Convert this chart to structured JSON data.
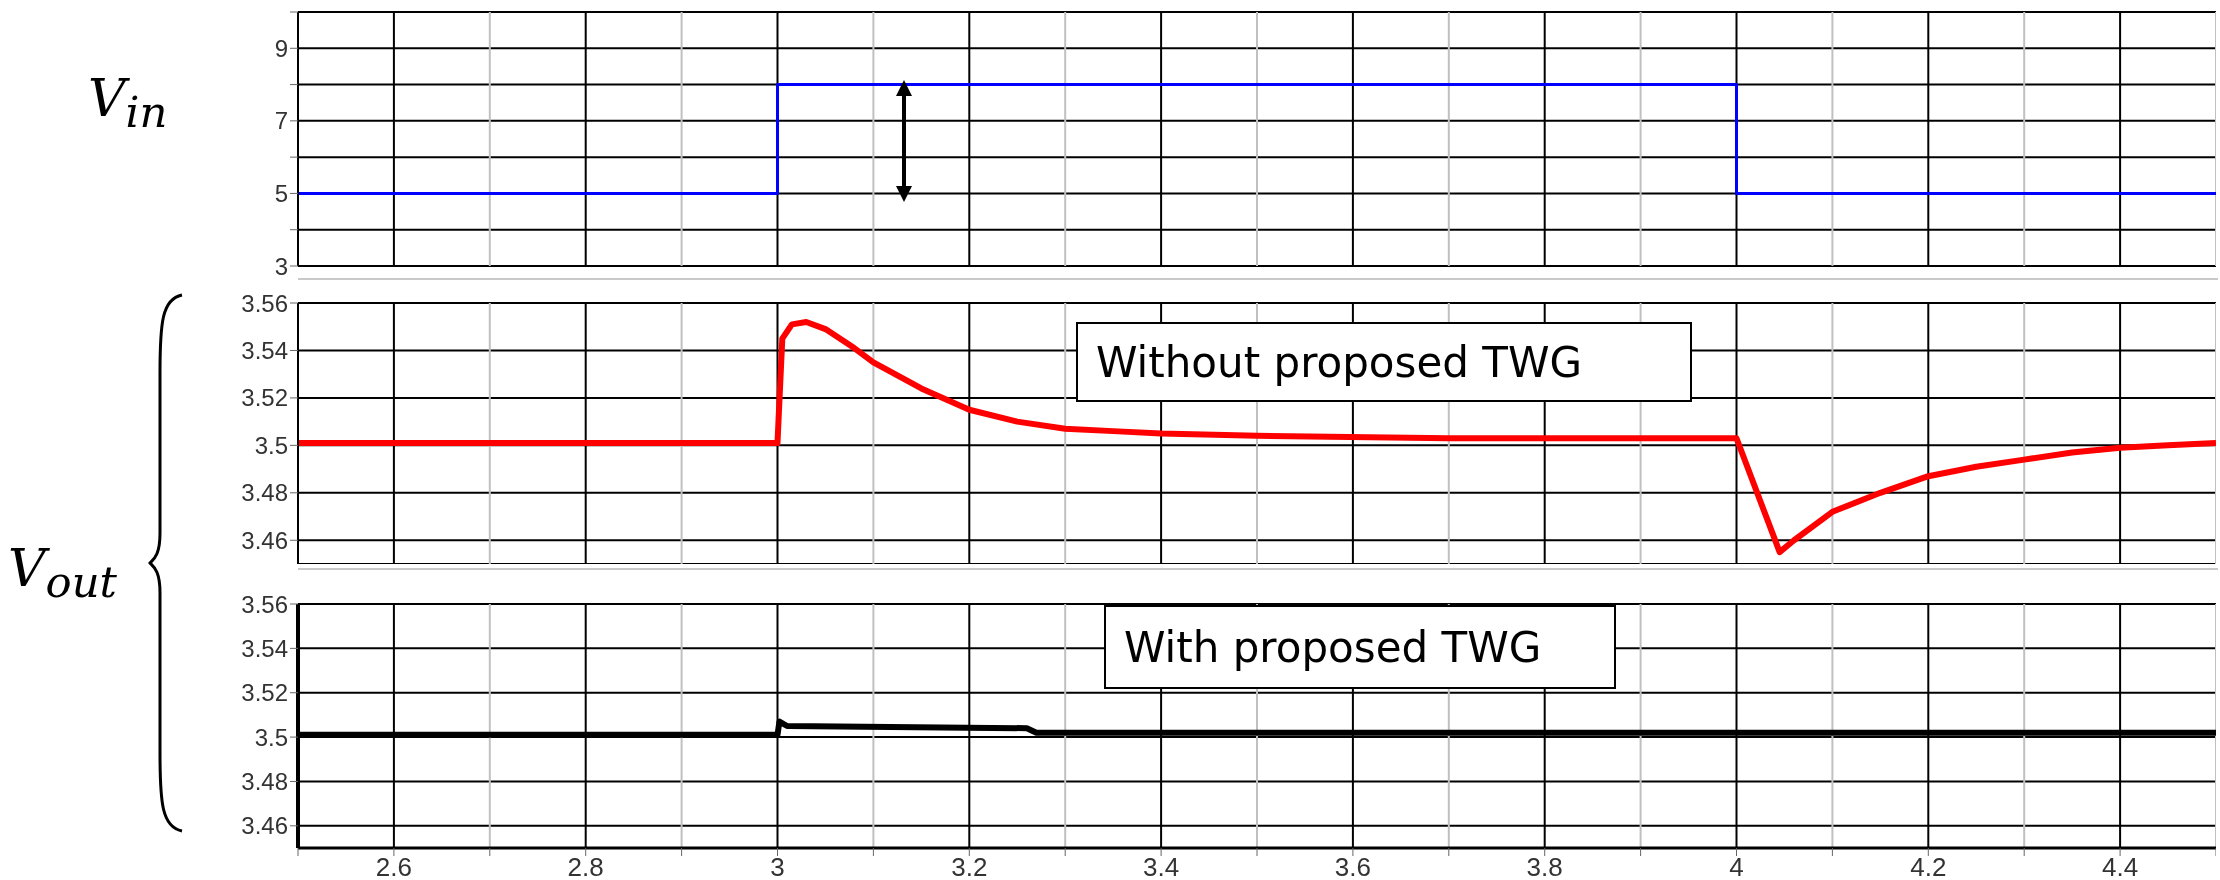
{
  "chart_data": [
    {
      "type": "line",
      "ylabel": "V$_{in}$",
      "xlim": [
        2.5,
        4.5
      ],
      "xticks": [
        {
          "value": 2.5,
          "label": null
        },
        2.6,
        {
          "value": 2.7,
          "label": null
        },
        2.8,
        {
          "value": 2.9,
          "label": null
        },
        3,
        {
          "value": 3.1,
          "label": null
        },
        3.2,
        {
          "value": 3.3,
          "label": null
        },
        3.4,
        {
          "value": 3.5,
          "label": null
        },
        3.6,
        {
          "value": 3.7,
          "label": null
        },
        3.8,
        {
          "value": 3.9,
          "label": null
        },
        4,
        {
          "value": 4.1,
          "label": null
        },
        4.2,
        {
          "value": 4.3,
          "label": null
        },
        4.4,
        {
          "value": 4.5,
          "label": null
        }
      ],
      "ylim": [
        3,
        10
      ],
      "yticks": [
        3,
        {
          "value": 4,
          "label": null
        },
        5,
        {
          "value": 6,
          "label": null
        },
        7,
        {
          "value": 8,
          "label": null
        },
        9,
        {
          "value": 10,
          "label": null
        }
      ],
      "tick_labels": "y",
      "grid": true,
      "series": [
        {
          "color": "#0000ff",
          "x": [
            2.5,
            3,
            3,
            4,
            4,
            4.5
          ],
          "values": [
            5,
            5,
            8,
            8,
            5,
            5
          ]
        }
      ]
    },
    {
      "type": "line",
      "ylabel": "V$_{out}$",
      "annotations": [
        "Without proposed TWG"
      ],
      "xlim": [
        2.5,
        4.5
      ],
      "xticks": [
        {
          "value": 2.5,
          "label": null
        },
        2.6,
        {
          "value": 2.7,
          "label": null
        },
        2.8,
        {
          "value": 2.9,
          "label": null
        },
        3,
        {
          "value": 3.1,
          "label": null
        },
        3.2,
        {
          "value": 3.3,
          "label": null
        },
        3.4,
        {
          "value": 3.5,
          "label": null
        },
        3.6,
        {
          "value": 3.7,
          "label": null
        },
        3.8,
        {
          "value": 3.9,
          "label": null
        },
        4,
        {
          "value": 4.1,
          "label": null
        },
        4.2,
        {
          "value": 4.3,
          "label": null
        },
        4.4,
        {
          "value": 4.5,
          "label": null
        }
      ],
      "ylim": [
        3.45,
        3.56
      ],
      "yticks": [
        3.46,
        3.48,
        3.5,
        3.52,
        3.54,
        3.56
      ],
      "tick_labels": "y",
      "grid": true,
      "series": [
        {
          "color": "#ff0000",
          "x": [
            2.5,
            3,
            3.001,
            3.005,
            3.015,
            3.03,
            3.05,
            3.08,
            3.1,
            3.15,
            3.2,
            3.25,
            3.3,
            3.35,
            3.4,
            3.5,
            3.7,
            4,
            4.045,
            4.06,
            4.1,
            4.15,
            4.2,
            4.25,
            4.3,
            4.35,
            4.4,
            4.45,
            4.5
          ],
          "values": [
            3.501,
            3.501,
            3.51,
            3.545,
            3.551,
            3.552,
            3.549,
            3.541,
            3.535,
            3.524,
            3.515,
            3.51,
            3.507,
            3.506,
            3.505,
            3.504,
            3.503,
            3.503,
            3.455,
            3.46,
            3.472,
            3.48,
            3.487,
            3.491,
            3.494,
            3.497,
            3.499,
            3.5,
            3.501
          ]
        }
      ]
    },
    {
      "type": "line",
      "annotations": [
        "With proposed TWG"
      ],
      "xlim": [
        2.5,
        4.5
      ],
      "xticks": [
        {
          "value": 2.5,
          "label": null
        },
        2.6,
        {
          "value": 2.7,
          "label": null
        },
        2.8,
        {
          "value": 2.9,
          "label": null
        },
        3,
        {
          "value": 3.1,
          "label": null
        },
        3.2,
        {
          "value": 3.3,
          "label": null
        },
        3.4,
        {
          "value": 3.5,
          "label": null
        },
        3.6,
        {
          "value": 3.7,
          "label": null
        },
        3.8,
        {
          "value": 3.9,
          "label": null
        },
        4,
        {
          "value": 4.1,
          "label": null
        },
        4.2,
        {
          "value": 4.3,
          "label": null
        },
        4.4,
        {
          "value": 4.5,
          "label": null
        }
      ],
      "ylim": [
        3.45,
        3.56
      ],
      "yticks": [
        3.46,
        3.48,
        3.5,
        3.52,
        3.54,
        3.56
      ],
      "grid": true,
      "series": [
        {
          "color": "#000000",
          "x": [
            2.5,
            3,
            3.002,
            3.01,
            3.26,
            3.27,
            4,
            4.5
          ],
          "values": [
            3.501,
            3.501,
            3.507,
            3.505,
            3.504,
            3.502,
            3.502,
            3.502
          ]
        }
      ]
    }
  ]
}
